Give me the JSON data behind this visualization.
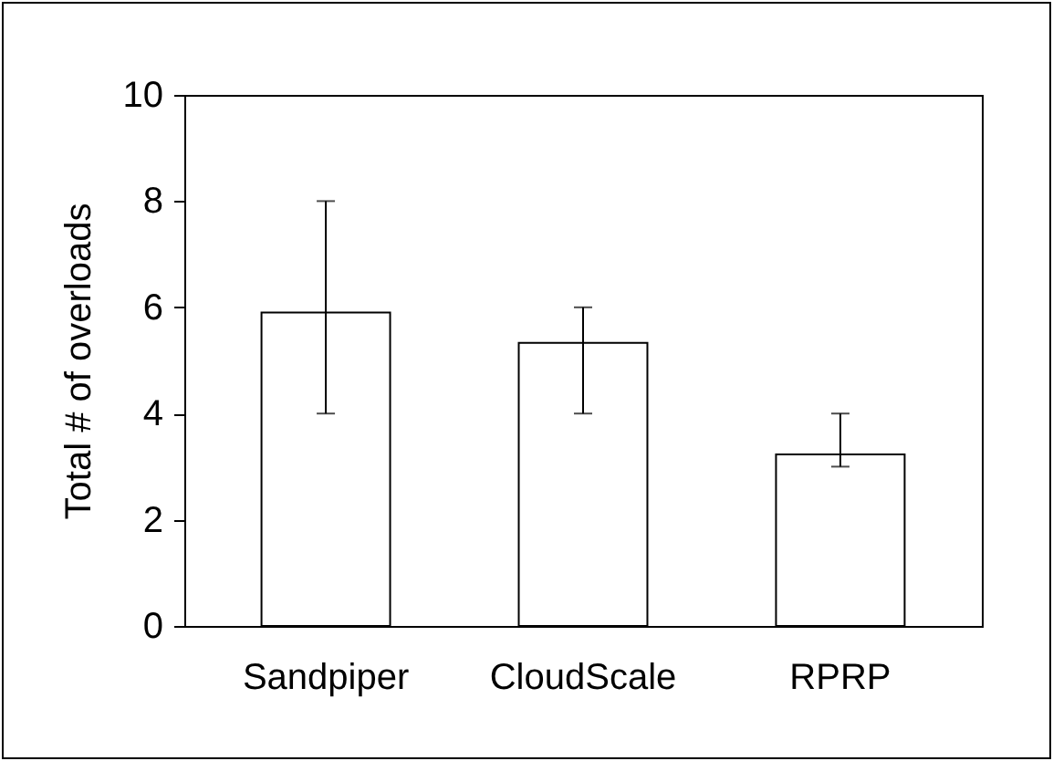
{
  "chart_data": {
    "type": "bar",
    "ylabel": "Total # of overloads",
    "categories": [
      "Sandpiper",
      "CloudScale",
      "RPRP"
    ],
    "values": [
      5.9,
      5.33,
      3.23
    ],
    "errors": [
      [
        4,
        8
      ],
      [
        4,
        6
      ],
      [
        3,
        4
      ]
    ],
    "color": "#ffffff",
    "ylim": [
      0,
      10
    ],
    "yticks": [
      0,
      2,
      4,
      6,
      8,
      10
    ],
    "grid": false
  }
}
